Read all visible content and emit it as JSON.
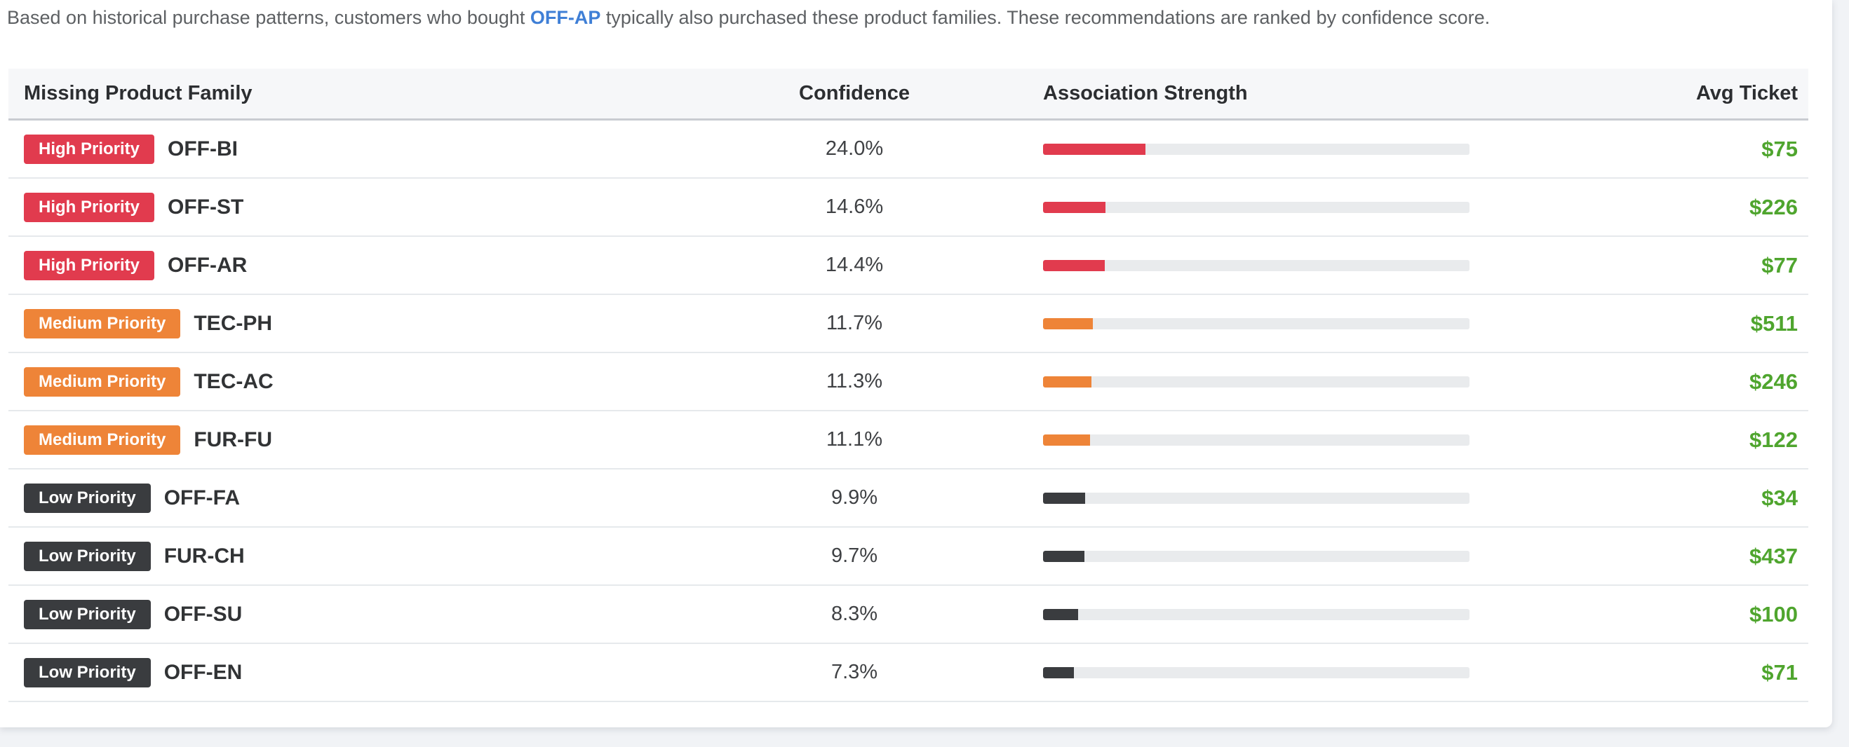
{
  "intro": {
    "prefix": "Based on historical purchase patterns, customers who bought ",
    "highlight": "OFF-AP",
    "suffix": " typically also purchased these product families. These recommendations are ranked by confidence score."
  },
  "table": {
    "columns": {
      "family": "Missing Product Family",
      "confidence": "Confidence",
      "strength": "Association Strength",
      "avg_ticket": "Avg Ticket"
    },
    "rows": [
      {
        "priority_label": "High Priority",
        "priority_level": "high",
        "family": "OFF-BI",
        "confidence": "24.0%",
        "confidence_value": 24.0,
        "avg_ticket": "$75"
      },
      {
        "priority_label": "High Priority",
        "priority_level": "high",
        "family": "OFF-ST",
        "confidence": "14.6%",
        "confidence_value": 14.6,
        "avg_ticket": "$226"
      },
      {
        "priority_label": "High Priority",
        "priority_level": "high",
        "family": "OFF-AR",
        "confidence": "14.4%",
        "confidence_value": 14.4,
        "avg_ticket": "$77"
      },
      {
        "priority_label": "Medium Priority",
        "priority_level": "medium",
        "family": "TEC-PH",
        "confidence": "11.7%",
        "confidence_value": 11.7,
        "avg_ticket": "$511"
      },
      {
        "priority_label": "Medium Priority",
        "priority_level": "medium",
        "family": "TEC-AC",
        "confidence": "11.3%",
        "confidence_value": 11.3,
        "avg_ticket": "$246"
      },
      {
        "priority_label": "Medium Priority",
        "priority_level": "medium",
        "family": "FUR-FU",
        "confidence": "11.1%",
        "confidence_value": 11.1,
        "avg_ticket": "$122"
      },
      {
        "priority_label": "Low Priority",
        "priority_level": "low",
        "family": "OFF-FA",
        "confidence": "9.9%",
        "confidence_value": 9.9,
        "avg_ticket": "$34"
      },
      {
        "priority_label": "Low Priority",
        "priority_level": "low",
        "family": "FUR-CH",
        "confidence": "9.7%",
        "confidence_value": 9.7,
        "avg_ticket": "$437"
      },
      {
        "priority_label": "Low Priority",
        "priority_level": "low",
        "family": "OFF-SU",
        "confidence": "8.3%",
        "confidence_value": 8.3,
        "avg_ticket": "$100"
      },
      {
        "priority_label": "Low Priority",
        "priority_level": "low",
        "family": "OFF-EN",
        "confidence": "7.3%",
        "confidence_value": 7.3,
        "avg_ticket": "$71"
      }
    ]
  },
  "colors": {
    "high_priority": "#e13b4e",
    "medium_priority": "#ee8438",
    "low_priority": "#3a3c3f",
    "avg_ticket_green": "#4fa52e",
    "highlight_blue": "#3f7fd6",
    "bar_track": "#e9ebed"
  }
}
